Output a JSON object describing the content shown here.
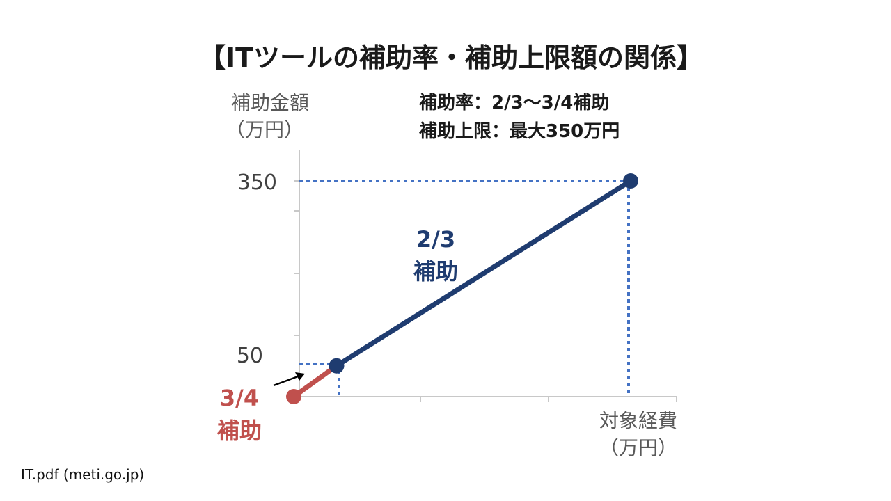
{
  "chart_data": {
    "type": "line",
    "title": "【ITツールの補助率・補助上限額の関係】",
    "ylabel": [
      "補助金額",
      "（万円）"
    ],
    "xlabel": [
      "対象経費",
      "（万円）"
    ],
    "info_lines": [
      "補助率：2/3〜3/4補助",
      "補助上限：最大350万円"
    ],
    "y_ticks": [
      "350",
      "50"
    ],
    "segments": [
      {
        "name": "3/4補助",
        "label_lines": [
          "3/4",
          "補助"
        ],
        "color": "#c0504d",
        "points": [
          [
            0,
            0
          ],
          [
            66.7,
            50
          ]
        ]
      },
      {
        "name": "2/3補助",
        "label_lines": [
          "2/3",
          "補助"
        ],
        "color": "#1f3c70",
        "points": [
          [
            66.7,
            50
          ],
          [
            525,
            350
          ]
        ]
      }
    ],
    "dotted_color": "#4472c4",
    "axis_color": "#c8c8c8"
  },
  "source": "IT.pdf (meti.go.jp)"
}
